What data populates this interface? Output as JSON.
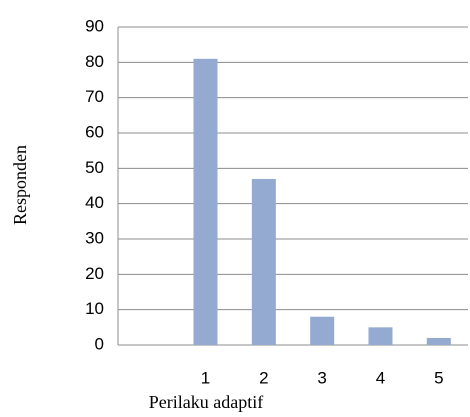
{
  "chart_data": {
    "type": "bar",
    "categories": [
      null,
      "1",
      "2",
      "3",
      "4",
      "5"
    ],
    "values": [
      null,
      81,
      47,
      8,
      5,
      2
    ],
    "color": "#94aad0",
    "ylim": [
      0,
      90
    ],
    "yticks": [
      0,
      10,
      20,
      30,
      40,
      50,
      60,
      70,
      80,
      90
    ],
    "grid": true,
    "x_label": "Perilaku adaptif",
    "y_label": "Responden"
  }
}
